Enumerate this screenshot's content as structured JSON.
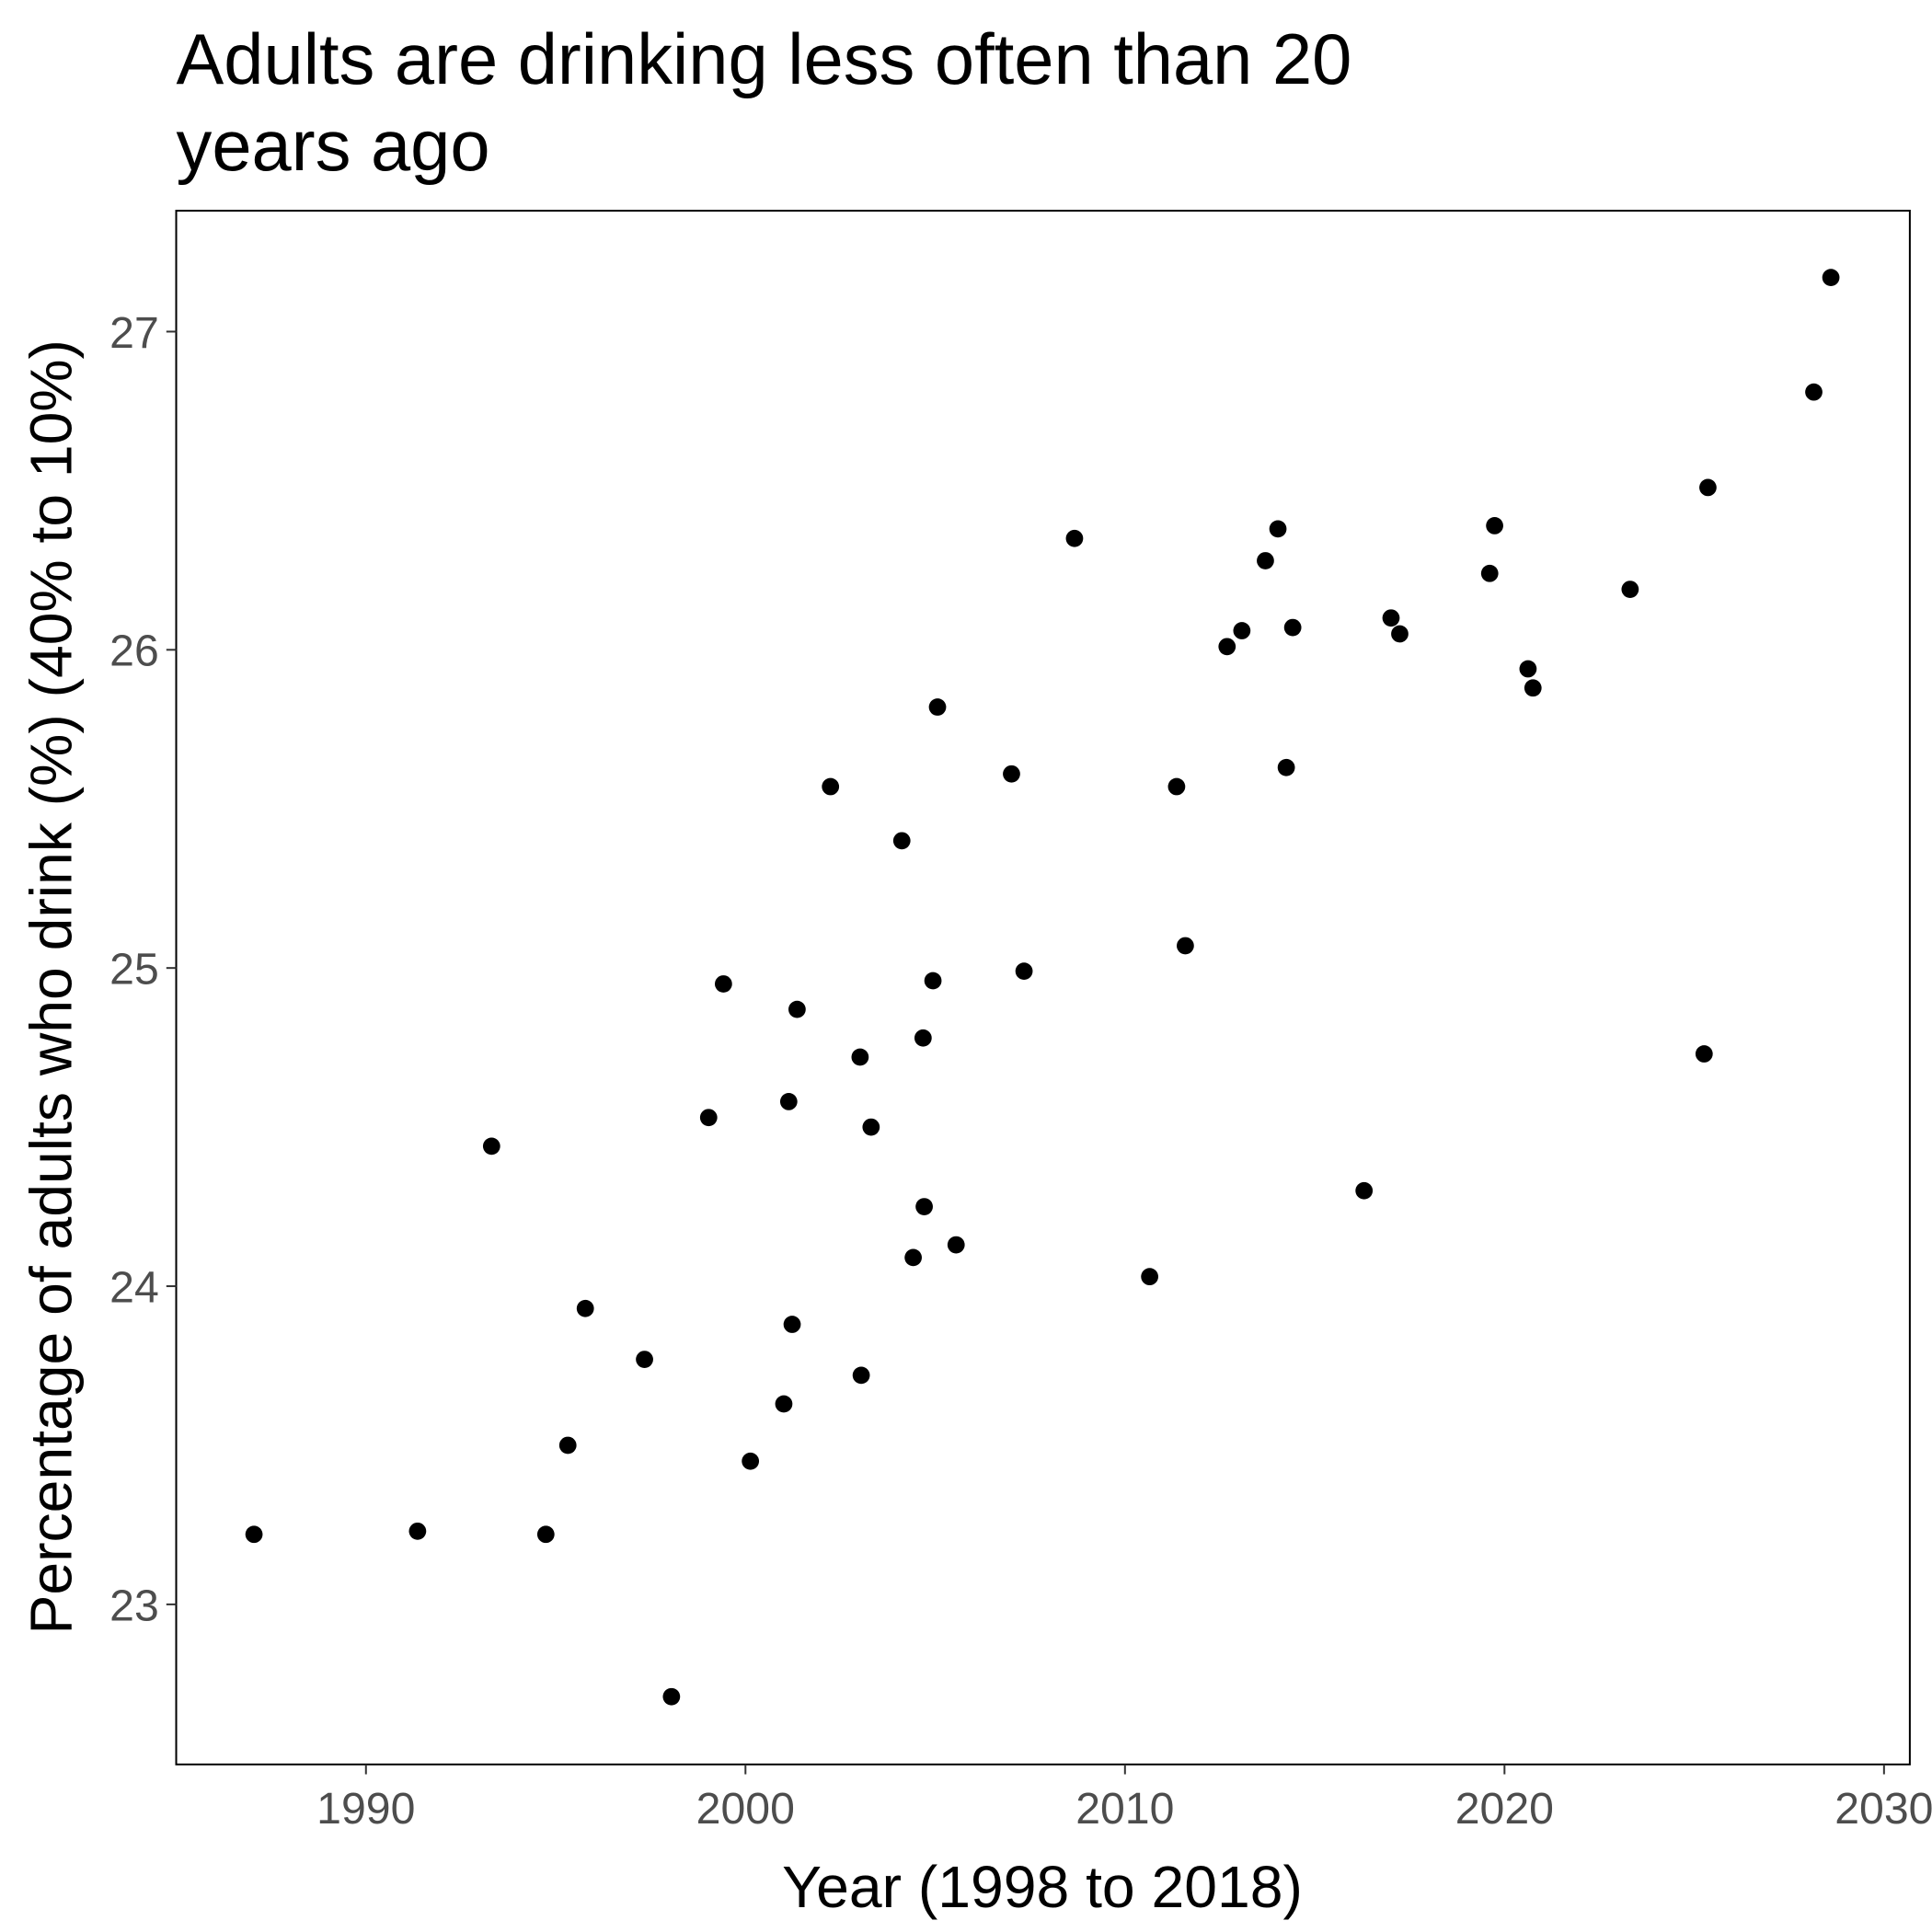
{
  "chart_data": {
    "type": "scatter",
    "title": [
      "Adults are drinking less often than 20",
      "years ago"
    ],
    "x_label": "Year (1998 to 2018)",
    "y_label": "Percentage of adults who drink (%) (40% to 10%)",
    "color": "#000000",
    "xlim": [
      1985.0,
      2030.68
    ],
    "ylim": [
      22.497,
      27.38
    ],
    "xticks": [
      1990,
      2000,
      2010,
      2020,
      2030
    ],
    "yticks": [
      23,
      24,
      25,
      26,
      27
    ],
    "x": [
      1987.05,
      1991.36,
      1993.31,
      1994.74,
      1995.32,
      1995.78,
      1997.34,
      1998.05,
      1999.03,
      1999.42,
      2000.13,
      2001.01,
      2001.14,
      2001.23,
      2001.36,
      2002.24,
      2003.02,
      2003.05,
      2003.31,
      2004.12,
      2004.42,
      2004.68,
      2004.71,
      2004.94,
      2005.06,
      2005.55,
      2007.01,
      2007.34,
      2008.67,
      2010.65,
      2011.36,
      2011.59,
      2012.69,
      2013.08,
      2013.7,
      2014.03,
      2014.25,
      2014.42,
      2016.3,
      2017.01,
      2017.24,
      2019.61,
      2019.74,
      2020.62,
      2020.75,
      2023.31,
      2025.26,
      2025.36,
      2028.15,
      2028.6
    ],
    "values": [
      23.22,
      23.23,
      24.44,
      23.22,
      23.5,
      23.93,
      23.77,
      22.71,
      24.53,
      24.95,
      23.45,
      23.63,
      24.58,
      23.88,
      24.87,
      25.57,
      24.72,
      23.72,
      24.5,
      25.4,
      24.09,
      24.78,
      24.25,
      24.96,
      25.82,
      24.13,
      25.61,
      24.99,
      26.35,
      24.03,
      25.57,
      25.07,
      26.01,
      26.06,
      26.28,
      26.38,
      25.63,
      26.07,
      24.3,
      26.1,
      26.05,
      26.24,
      26.39,
      25.94,
      25.88,
      26.19,
      24.73,
      26.51,
      26.81,
      27.17
    ]
  }
}
